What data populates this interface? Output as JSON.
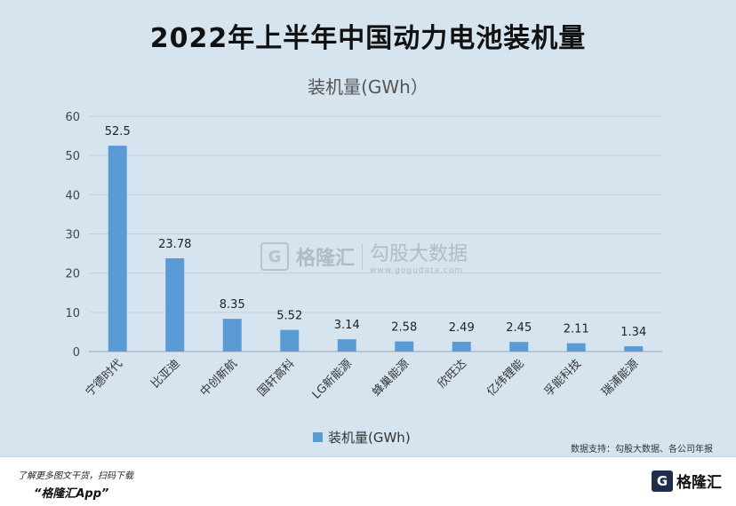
{
  "title": "2022年上半年中国动力电池装机量",
  "subtitle": "装机量(GWh）",
  "chart_data": {
    "type": "bar",
    "categories": [
      "宁德时代",
      "比亚迪",
      "中创新航",
      "国轩高科",
      "LG新能源",
      "蜂巢能源",
      "欣旺达",
      "亿纬锂能",
      "孚能科技",
      "瑞浦能源"
    ],
    "series": [
      {
        "name": "装机量(GWh)",
        "values": [
          52.5,
          23.78,
          8.35,
          5.52,
          3.14,
          2.58,
          2.49,
          2.45,
          2.11,
          1.34
        ]
      }
    ],
    "value_labels": [
      "52.5",
      "23.78",
      "8.35",
      "5.52",
      "3.14",
      "2.58",
      "2.49",
      "2.45",
      "2.11",
      "1.34"
    ],
    "yticks": [
      0,
      10,
      20,
      30,
      40,
      50,
      60
    ],
    "ylim": [
      0,
      60
    ],
    "grid": true,
    "legend_position": "bottom",
    "bar_color": "#5b9bd5"
  },
  "legend": {
    "label": "装机量(GWh)"
  },
  "source": "数据支持：勾股大数据、各公司年报",
  "footer": {
    "line1": "了解更多图文干货，扫码下载",
    "line2": "“格隆汇App”",
    "logo_mark": "G",
    "logo_text": "格隆汇"
  },
  "watermark": {
    "mark": "G",
    "name": "格隆汇",
    "brand": "勾股大数据",
    "url": "www.gogudata.com"
  }
}
